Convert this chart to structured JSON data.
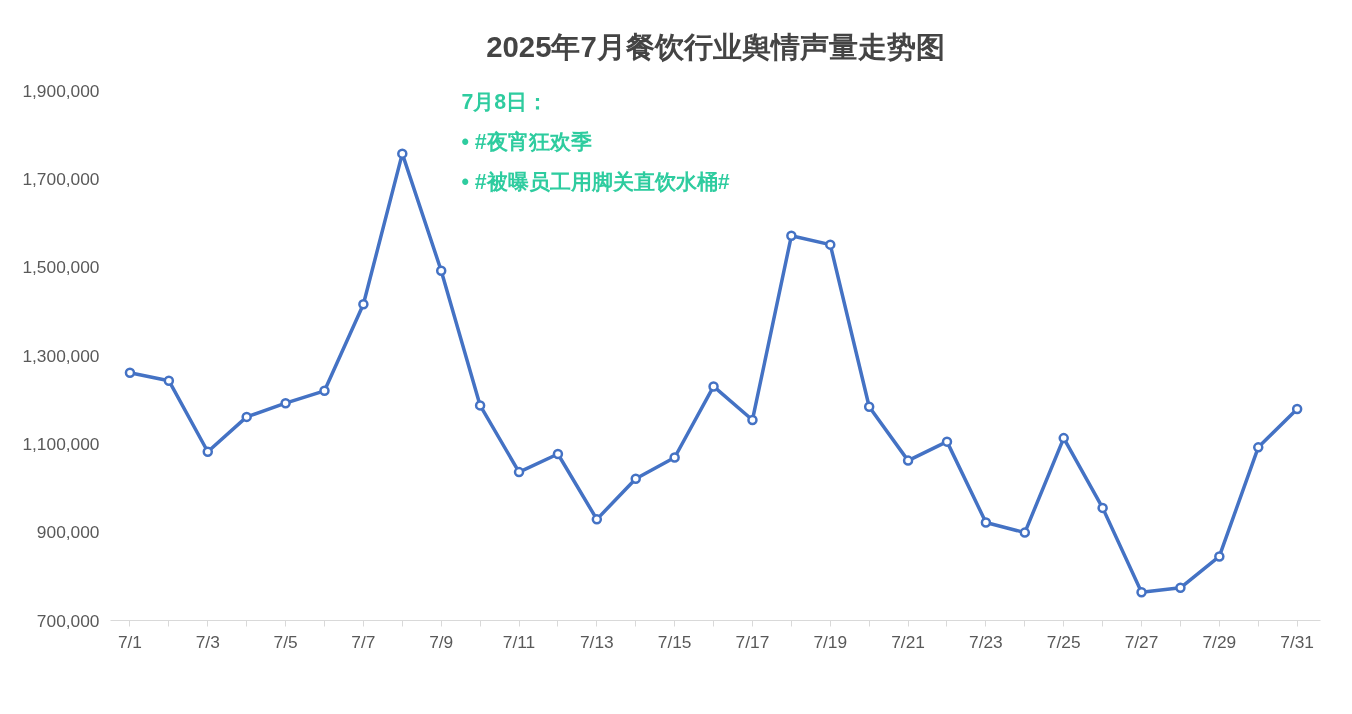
{
  "chart_data": {
    "type": "line",
    "title": "2025年7月餐饮行业舆情声量走势图",
    "categories": [
      "7/1",
      null,
      "7/3",
      null,
      "7/5",
      null,
      "7/7",
      null,
      "7/9",
      null,
      "7/11",
      null,
      "7/13",
      null,
      "7/15",
      null,
      "7/17",
      null,
      "7/19",
      null,
      "7/21",
      null,
      "7/23",
      null,
      "7/25",
      null,
      "7/27",
      null,
      "7/29",
      null,
      "7/31"
    ],
    "series": [
      {
        "color": "#4472c4",
        "values": [
          1261000,
          1243000,
          1082000,
          1161000,
          1192000,
          1220000,
          1416000,
          1757000,
          1492000,
          1187000,
          1036000,
          1077000,
          929000,
          1021000,
          1069000,
          1230000,
          1154000,
          1571000,
          1551000,
          1184000,
          1062000,
          1105000,
          922000,
          899000,
          1113000,
          955000,
          764000,
          774000,
          845000,
          1092000,
          1179000
        ]
      }
    ],
    "ylim": [
      700000,
      1900000
    ],
    "yticks": [
      {
        "value": 700000,
        "label": "700,000"
      },
      {
        "value": 900000,
        "label": "900,000"
      },
      {
        "value": 1100000,
        "label": "1,100,000"
      },
      {
        "value": 1300000,
        "label": "1,300,000"
      },
      {
        "value": 1500000,
        "label": "1,500,000"
      },
      {
        "value": 1700000,
        "label": "1,700,000"
      },
      {
        "value": 1900000,
        "label": "1,900,000"
      }
    ],
    "grid": false,
    "marker": "circle",
    "line_style": "solid",
    "annotations": [
      "7月8日：",
      "•  #夜宵狂欢季",
      "•  #被曝员工用脚关直饮水桶#"
    ]
  }
}
